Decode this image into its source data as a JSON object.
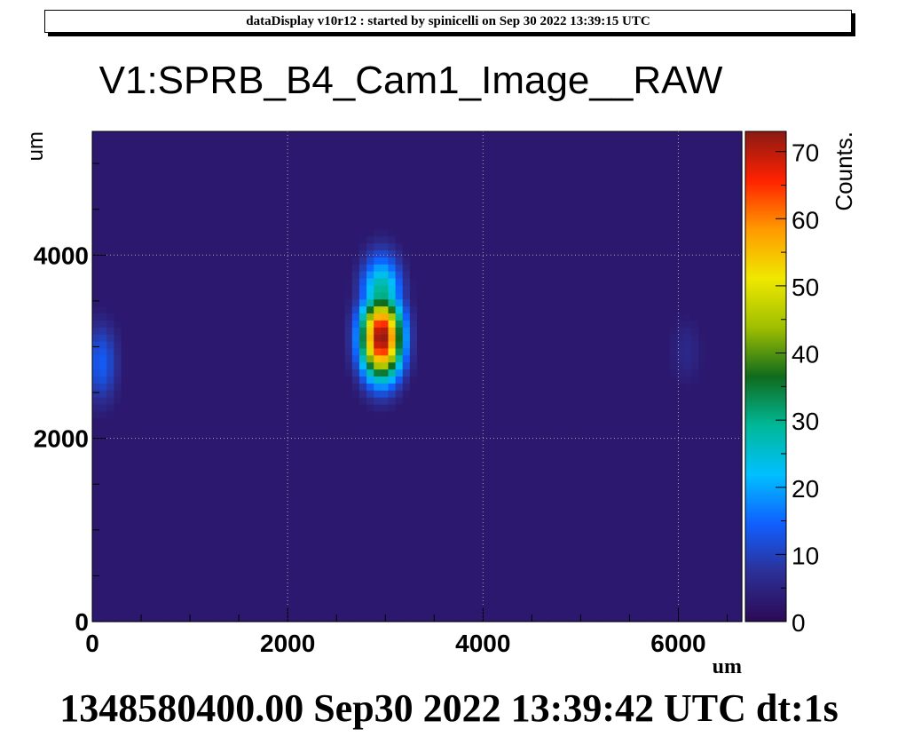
{
  "banner": "dataDisplay v10r12 : started by spinicelli on Sep 30 2022 13:39:15 UTC",
  "footer": "1348580400.00 Sep30 2022 13:39:42 UTC dt:1s",
  "chart_data": {
    "type": "heatmap",
    "title": "V1:SPRB_B4_Cam1_Image__RAW",
    "xlabel": "um",
    "ylabel": "um",
    "zlabel": "Counts.",
    "xlim": [
      0,
      6650
    ],
    "ylim": [
      0,
      5350
    ],
    "zlim": [
      0,
      73
    ],
    "x_ticks": [
      0,
      2000,
      4000,
      6000
    ],
    "y_ticks": [
      0,
      2000,
      4000
    ],
    "z_ticks": [
      0,
      10,
      20,
      30,
      40,
      50,
      60,
      70
    ],
    "grid": true,
    "background_level": 3,
    "blobs": [
      {
        "x": 2960,
        "y": 3100,
        "peak": 73,
        "sigma_x": 150,
        "sigma_y": 320
      },
      {
        "x": 2960,
        "y": 3550,
        "peak": 30,
        "sigma_x": 150,
        "sigma_y": 320
      },
      {
        "x": 90,
        "y": 2820,
        "peak": 13,
        "sigma_x": 130,
        "sigma_y": 330
      },
      {
        "x": 6080,
        "y": 2950,
        "peak": 5,
        "sigma_x": 140,
        "sigma_y": 310
      }
    ],
    "colormap": [
      "#2c0a55",
      "#2c2f95",
      "#1060ff",
      "#00c0ff",
      "#00b897",
      "#0f6b1c",
      "#9fbf00",
      "#f0e800",
      "#ff9a00",
      "#ff2200",
      "#8a1a14"
    ]
  }
}
